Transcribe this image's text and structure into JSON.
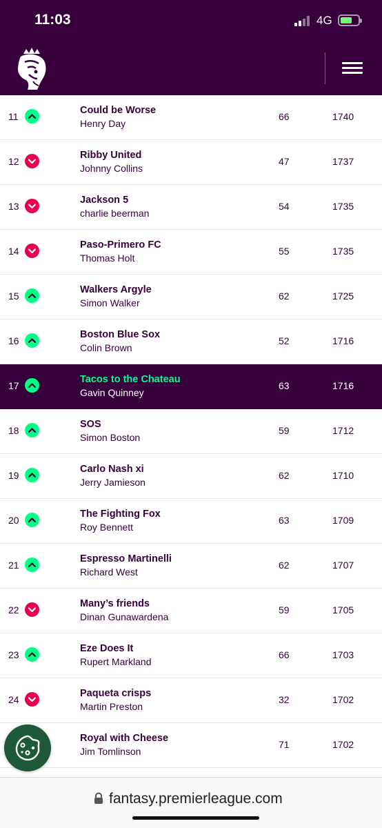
{
  "status_bar": {
    "time": "11:03",
    "network": "4G"
  },
  "header": {
    "logo": "premier-league-lion-icon",
    "menu_icon": "hamburger-icon"
  },
  "colors": {
    "brand": "#37003c",
    "up": "#00ff85",
    "down": "#e90052",
    "highlight_team": "#00ff85"
  },
  "rows": [
    {
      "rank": "11",
      "move": "up",
      "team": "Could be Worse",
      "manager": "Henry Day",
      "gw": "66",
      "total": "1740"
    },
    {
      "rank": "12",
      "move": "down",
      "team": "Ribby United",
      "manager": "Johnny Collins",
      "gw": "47",
      "total": "1737"
    },
    {
      "rank": "13",
      "move": "down",
      "team": "Jackson 5",
      "manager": "charlie beerman",
      "gw": "54",
      "total": "1735"
    },
    {
      "rank": "14",
      "move": "down",
      "team": "Paso-Primero FC",
      "manager": "Thomas Holt",
      "gw": "55",
      "total": "1735"
    },
    {
      "rank": "15",
      "move": "up",
      "team": "Walkers Argyle",
      "manager": "Simon Walker",
      "gw": "62",
      "total": "1725"
    },
    {
      "rank": "16",
      "move": "up",
      "team": "Boston Blue Sox",
      "manager": "Colin Brown",
      "gw": "52",
      "total": "1716"
    },
    {
      "rank": "17",
      "move": "up",
      "team": "Tacos to the Chateau",
      "manager": "Gavin Quinney",
      "gw": "63",
      "total": "1716",
      "highlight": true
    },
    {
      "rank": "18",
      "move": "up",
      "team": "SOS",
      "manager": "Simon Boston",
      "gw": "59",
      "total": "1712"
    },
    {
      "rank": "19",
      "move": "up",
      "team": "Carlo Nash xi",
      "manager": "Jerry Jamieson",
      "gw": "62",
      "total": "1710"
    },
    {
      "rank": "20",
      "move": "up",
      "team": "The Fighting Fox",
      "manager": "Roy Bennett",
      "gw": "63",
      "total": "1709"
    },
    {
      "rank": "21",
      "move": "up",
      "team": "Espresso Martinelli",
      "manager": "Richard West",
      "gw": "62",
      "total": "1707"
    },
    {
      "rank": "22",
      "move": "down",
      "team": "Many’s friends",
      "manager": "Dinan Gunawardena",
      "gw": "59",
      "total": "1705"
    },
    {
      "rank": "23",
      "move": "up",
      "team": "Eze Does It",
      "manager": "Rupert Markland",
      "gw": "66",
      "total": "1703"
    },
    {
      "rank": "24",
      "move": "down",
      "team": "Paqueta crisps",
      "manager": "Martin Preston",
      "gw": "32",
      "total": "1702"
    },
    {
      "rank": "",
      "move": "",
      "team": "Royal with Cheese",
      "manager": "Jim Tomlinson",
      "gw": "71",
      "total": "1702"
    }
  ],
  "cookie_button": {
    "icon": "cookie-icon"
  },
  "browser": {
    "url": "fantasy.premierleague.com",
    "lock_icon": "lock-icon"
  }
}
